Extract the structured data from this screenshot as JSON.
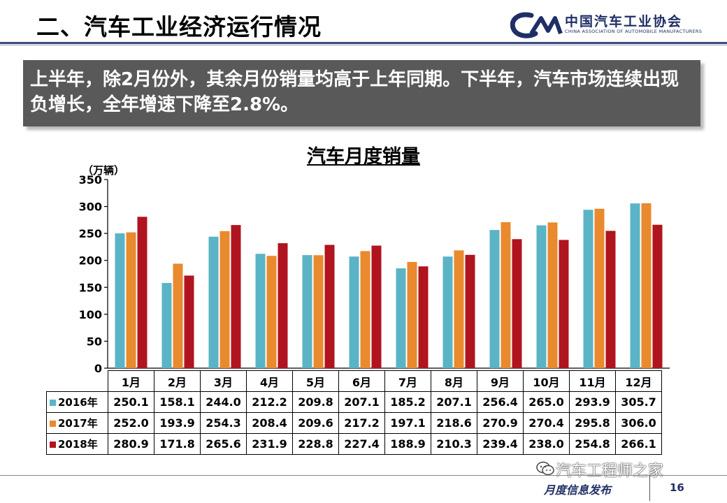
{
  "header": {
    "title": "二、汽车工业经济运行情况",
    "logo_cn": "中国汽车工业协会",
    "logo_en": "CHINA ASSOCIATION OF AUTOMOBILE MANUFACTURERS"
  },
  "banner": {
    "text": "上半年，除2月份外，其余月份销量均高于上年同期。下半年，汽车市场连续出现负增长，全年增速下降至2.8%。"
  },
  "chart_data": {
    "type": "bar",
    "title": "汽车月度销量",
    "ylabel": "（万辆）",
    "xlabel": "",
    "ylim": [
      0,
      350
    ],
    "yticks": [
      0,
      50,
      100,
      150,
      200,
      250,
      300,
      350
    ],
    "grid": false,
    "legend": "table-left",
    "categories": [
      "1月",
      "2月",
      "3月",
      "4月",
      "5月",
      "6月",
      "7月",
      "8月",
      "9月",
      "10月",
      "11月",
      "12月"
    ],
    "series": [
      {
        "name": "2016年",
        "color": "#5ab4c5",
        "values": [
          250.1,
          158.1,
          244.0,
          212.2,
          209.8,
          207.1,
          185.2,
          207.1,
          256.4,
          265.0,
          293.9,
          305.7
        ]
      },
      {
        "name": "2017年",
        "color": "#e98a2e",
        "values": [
          252.0,
          193.9,
          254.3,
          208.4,
          209.6,
          217.2,
          197.1,
          218.6,
          270.9,
          270.4,
          295.8,
          306.0
        ]
      },
      {
        "name": "2018年",
        "color": "#b0141e",
        "values": [
          280.9,
          171.8,
          265.6,
          231.9,
          228.8,
          227.4,
          188.9,
          210.3,
          239.4,
          238.0,
          254.8,
          266.1
        ]
      }
    ],
    "table_value_texts": [
      [
        "250.1",
        "158.1",
        "244.0",
        "212.2",
        "209.8",
        "207.1",
        "185.2",
        "207.1",
        "256.4",
        "265.0",
        "293.9",
        "305.7"
      ],
      [
        "252.0",
        "193.9",
        "254.3",
        "208.4",
        "209.6",
        "217.2",
        "197.1",
        "218.6",
        "270.9",
        "270.4",
        "295.8",
        "306.0"
      ],
      [
        "280.9",
        "171.8",
        "265.6",
        "231.9",
        "228.8",
        "227.4",
        "188.9",
        "210.3",
        "239.4",
        "238.0",
        "254.8",
        "266.1"
      ]
    ]
  },
  "footer": {
    "label": "月度信息发布",
    "page": "16",
    "watermark": "汽车工程师之家"
  }
}
